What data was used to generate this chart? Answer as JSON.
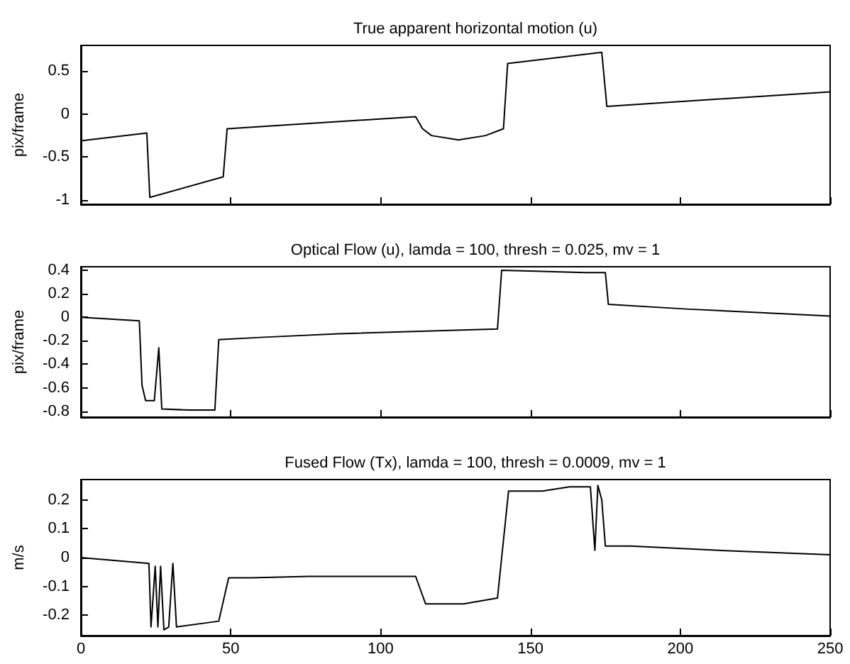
{
  "chart_data": [
    {
      "type": "line",
      "title": "True apparent horizontal motion (u)",
      "ylabel": "pix/frame",
      "xlim": [
        0,
        250
      ],
      "xticks": [
        0,
        50,
        100,
        150,
        200,
        250
      ],
      "ylim": [
        -1.05,
        0.8
      ],
      "yticks": [
        -1,
        -0.5,
        0,
        0.5
      ],
      "tick_labels": "y",
      "grid": false,
      "marker": "none",
      "line_style": "solid",
      "series": [
        {
          "color": "#000000",
          "x": [
            0,
            22,
            23,
            47.5,
            48.8,
            111.7,
            114,
            117,
            126,
            135,
            141,
            142.4,
            173.8,
            175.5,
            250
          ],
          "values": [
            -0.31,
            -0.22,
            -0.97,
            -0.73,
            -0.17,
            -0.03,
            -0.17,
            -0.25,
            -0.3,
            -0.25,
            -0.17,
            0.59,
            0.72,
            0.09,
            0.26
          ]
        }
      ]
    },
    {
      "type": "line",
      "title": "Optical Flow (u), lamda = 100, thresh = 0.025, mv = 1",
      "ylabel": "pix/frame",
      "xlim": [
        0,
        250
      ],
      "xticks": [
        0,
        50,
        100,
        150,
        200,
        250
      ],
      "ylim": [
        -0.85,
        0.43
      ],
      "yticks": [
        -0.8,
        -0.6,
        -0.4,
        -0.2,
        0,
        0.2,
        0.4
      ],
      "tick_labels": "y",
      "grid": false,
      "marker": "none",
      "line_style": "solid",
      "series": [
        {
          "color": "#000000",
          "x": [
            0,
            19.5,
            20.4,
            21.6,
            24.5,
            26,
            27,
            36,
            44.7,
            46,
            61,
            86,
            139,
            140.4,
            168.4,
            175,
            176,
            202,
            250
          ],
          "values": [
            0,
            -0.03,
            -0.58,
            -0.71,
            -0.71,
            -0.26,
            -0.78,
            -0.79,
            -0.79,
            -0.19,
            -0.17,
            -0.14,
            -0.1,
            0.4,
            0.38,
            0.38,
            0.11,
            0.07,
            0.01
          ]
        }
      ]
    },
    {
      "type": "line",
      "title": "Fused Flow (Tx), lamda = 100, thresh = 0.0009, mv = 1",
      "ylabel": "m/s",
      "xlim": [
        0,
        250
      ],
      "xticks": [
        0,
        50,
        100,
        150,
        200,
        250
      ],
      "ylim": [
        -0.27,
        0.27
      ],
      "yticks": [
        -0.2,
        -0.1,
        0,
        0.1,
        0.2
      ],
      "grid": false,
      "marker": "none",
      "line_style": "solid",
      "series": [
        {
          "color": "#000000",
          "x": [
            0,
            22.7,
            23.4,
            24.8,
            25.7,
            26.6,
            27.7,
            29.3,
            30.7,
            31.9,
            46,
            49.3,
            56.7,
            76,
            111.7,
            115,
            127.7,
            139,
            142.7,
            154,
            163,
            170,
            171.5,
            172.5,
            173.8,
            175,
            183.5,
            212.8,
            250
          ],
          "values": [
            0,
            -0.02,
            -0.24,
            -0.03,
            -0.24,
            -0.03,
            -0.25,
            -0.24,
            -0.02,
            -0.24,
            -0.22,
            -0.07,
            -0.07,
            -0.065,
            -0.065,
            -0.16,
            -0.16,
            -0.14,
            0.23,
            0.23,
            0.245,
            0.245,
            0.025,
            0.25,
            0.2,
            0.04,
            0.04,
            0.025,
            0.01
          ]
        }
      ]
    }
  ]
}
